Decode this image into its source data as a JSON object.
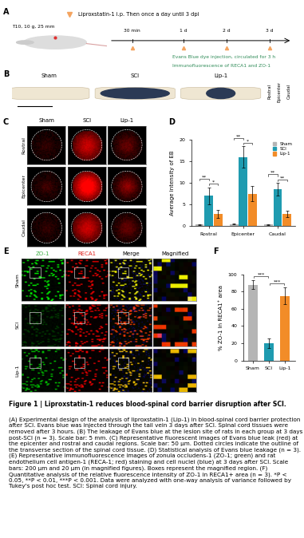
{
  "panel_labels": [
    "A",
    "B",
    "C",
    "D",
    "E",
    "F"
  ],
  "panel_a": {
    "drug": "Liproxstatin-1 i.p. Then once a day until 3 dpi",
    "injury": "T10, 10 g, 25 mm",
    "timepoints": [
      "30 min",
      "1 d",
      "2 d",
      "3 d"
    ],
    "readouts": [
      "Evans Blue dye injection, circulated for 3 h",
      "Immunofluorescence of RECA1 and ZO-1"
    ]
  },
  "panel_b": {
    "groups": [
      "Sham",
      "SCI",
      "Lip-1"
    ],
    "regions": [
      "Rostral",
      "Epicenter",
      "Caudal"
    ]
  },
  "panel_c": {
    "columns": [
      "Sham",
      "SCI",
      "Lip-1"
    ],
    "rows": [
      "Rostral",
      "Epicenter",
      "Caudal"
    ]
  },
  "panel_e": {
    "columns": [
      "ZO-1",
      "RECA1",
      "Merge",
      "Magnified"
    ],
    "rows": [
      "Sham",
      "SCI",
      "Lip-1"
    ],
    "column_colors": [
      "#3cb043",
      "#e0201b",
      "#000000",
      "#000000"
    ]
  },
  "chart_data": [
    {
      "type": "bar",
      "ylabel": "Average intensity of EB",
      "categories": [
        "Rostral",
        "Epicenter",
        "Caudal"
      ],
      "series": [
        {
          "name": "Sham",
          "color": "#b5b5b5",
          "values": [
            0.3,
            0.4,
            0.3
          ],
          "errors": [
            0.1,
            0.1,
            0.1
          ]
        },
        {
          "name": "SCI",
          "color": "#1f9bb0",
          "values": [
            7.0,
            16.0,
            8.5
          ],
          "errors": [
            2.0,
            2.5,
            1.5
          ]
        },
        {
          "name": "Lip-1",
          "color": "#f28c28",
          "values": [
            2.8,
            7.5,
            2.8
          ],
          "errors": [
            1.0,
            1.8,
            0.8
          ]
        }
      ],
      "ylim": [
        0,
        20
      ],
      "yticks": [
        0,
        5,
        10,
        15,
        20
      ],
      "legend": "upper right",
      "significance": [
        {
          "category": "Rostral",
          "pair": [
            "Sham",
            "SCI"
          ],
          "label": "**"
        },
        {
          "category": "Rostral",
          "pair": [
            "SCI",
            "Lip-1"
          ],
          "label": "*"
        },
        {
          "category": "Epicenter",
          "pair": [
            "Sham",
            "SCI"
          ],
          "label": "**"
        },
        {
          "category": "Epicenter",
          "pair": [
            "SCI",
            "Lip-1"
          ],
          "label": "*"
        },
        {
          "category": "Caudal",
          "pair": [
            "Sham",
            "SCI"
          ],
          "label": "**"
        },
        {
          "category": "Caudal",
          "pair": [
            "SCI",
            "Lip-1"
          ],
          "label": "**"
        }
      ]
    },
    {
      "type": "bar",
      "ylabel": "% ZO-1 in RECA1⁺ area",
      "categories": [
        "Sham",
        "SCI",
        "Lip-1"
      ],
      "values": [
        88,
        20,
        75
      ],
      "errors": [
        5,
        6,
        10
      ],
      "colors": [
        "#b5b5b5",
        "#1f9bb0",
        "#f28c28"
      ],
      "ylim": [
        0,
        100
      ],
      "yticks": [
        0,
        20,
        40,
        60,
        80,
        100
      ],
      "significance": [
        {
          "pair": [
            "Sham",
            "SCI"
          ],
          "label": "***"
        },
        {
          "pair": [
            "SCI",
            "Lip-1"
          ],
          "label": "***"
        }
      ]
    }
  ],
  "caption": {
    "title": "Figure 1 | Liproxstatin-1 reduces blood-spinal cord barrier disruption after SCI.",
    "body": "(A) Experimental design of the analysis of liproxstatin-1 (Lip-1) in blood-spinal cord barrier protection after SCI. Evans blue was injected through the tail vein 3 days after SCI. Spinal cord tissues were removed after 3 hours. (B) The leakage of Evans blue at the lesion site of rats in each group at 3 days post-SCI (n = 3). Scale bar: 5 mm. (C) Representative fluorescent images of Evans blue leak (red) at the epicenter and rostral and caudal regions. Scale bar: 50 μm. Dotted circles indicate the outline of the transverse section of the spinal cord tissue. (D) Statistical analysis of Evans blue leakage (n = 3). (E) Representative immunofluorescence images of zonula occludens-1 (ZO-1; green) and rat endothelium cell antigen-1 (RECA-1; red) staining and cell nuclei (blue) at 3 days after SCI. Scale bars: 200 μm and 20 μm (in magnified figures). Boxes represent the magnified region. (F) Quantitative analysis of the relative fluorescence intensity of ZO-1 in RECA1+ area (n = 3). *P < 0.05, **P < 0.01, ***P < 0.001. Data were analyzed with one-way analysis of variance followed by Tukey's post hoc test. SCI: Spinal cord injury."
  }
}
